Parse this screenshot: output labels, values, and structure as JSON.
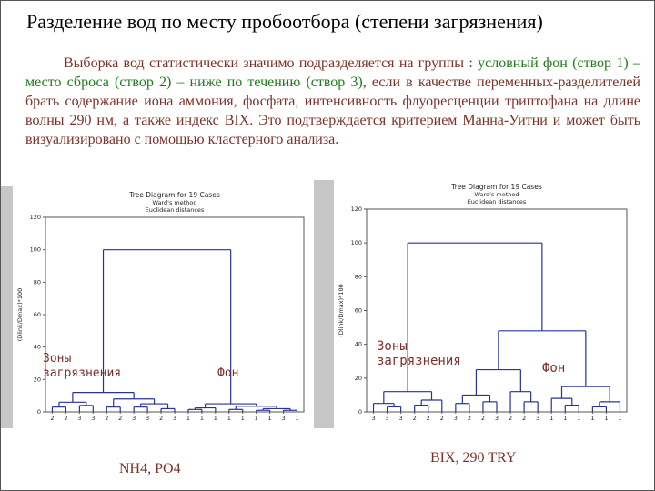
{
  "slide": {
    "title": "Разделение вод по месту пробоотбора (степени загрязнения)",
    "paragraph_parts": [
      {
        "text": "Выборка вод статистически значимо подразделяется на группы : ",
        "color": "maroon"
      },
      {
        "text": "условный фон (створ 1) – место сброса (створ 2) – ниже по течению (створ 3)",
        "color": "green"
      },
      {
        "text": ", если в качестве переменных-разделителей брать содержание иона аммония, фосфата, интенсивность флуоресценции триптофана на длине волны 290 нм, а также индекс BIX. Это подтверждается критерием Манна-Уитни и может быть визуализировано с помощью кластерного анализа.",
        "color": "maroon"
      }
    ],
    "colors": {
      "maroon": "#7b3028",
      "green": "#1f7a1f",
      "dendrogram_line": "#26339b"
    },
    "annotations": {
      "zones": "Зоны загрязнения",
      "fon": "Фон"
    }
  },
  "chart_data": [
    {
      "type": "dendrogram",
      "title_lines": [
        "Tree Diagram for 19 Cases",
        "Ward's method",
        "Euclidean distances"
      ],
      "ylabel": "(Dlink/Dmax)*100",
      "ylim": [
        0,
        120
      ],
      "yticks": [
        0,
        20,
        40,
        60,
        80,
        100,
        120
      ],
      "leaf_labels": [
        "2",
        "2",
        "3",
        "3",
        "2",
        "2",
        "3",
        "3",
        "2",
        "3",
        "1",
        "1",
        "1",
        "1",
        "1",
        "1",
        "1",
        "3",
        "1"
      ],
      "caption": "NH4, PO4",
      "line_color": "#26339b",
      "tree": {
        "h": 100,
        "children": [
          {
            "h": 12,
            "children": [
              {
                "h": 6,
                "children": [
                  {
                    "h": 3,
                    "children": [
                      {
                        "leaf": "2"
                      },
                      {
                        "leaf": "2"
                      }
                    ]
                  },
                  {
                    "h": 4,
                    "children": [
                      {
                        "leaf": "3"
                      },
                      {
                        "leaf": "3"
                      }
                    ]
                  }
                ]
              },
              {
                "h": 8,
                "children": [
                  {
                    "h": 3,
                    "children": [
                      {
                        "leaf": "2"
                      },
                      {
                        "leaf": "2"
                      }
                    ]
                  },
                  {
                    "h": 5,
                    "children": [
                      {
                        "h": 3,
                        "children": [
                          {
                            "leaf": "3"
                          },
                          {
                            "leaf": "3"
                          }
                        ]
                      },
                      {
                        "h": 2,
                        "children": [
                          {
                            "leaf": "2"
                          },
                          {
                            "leaf": "3"
                          }
                        ]
                      }
                    ]
                  }
                ]
              }
            ]
          },
          {
            "h": 5,
            "children": [
              {
                "h": 2.5,
                "children": [
                  {
                    "h": 1.5,
                    "children": [
                      {
                        "leaf": "1"
                      },
                      {
                        "leaf": "1"
                      }
                    ]
                  },
                  {
                    "leaf": "1"
                  }
                ]
              },
              {
                "h": 3.5,
                "children": [
                  {
                    "h": 1.5,
                    "children": [
                      {
                        "leaf": "1"
                      },
                      {
                        "leaf": "1"
                      }
                    ]
                  },
                  {
                    "h": 2,
                    "children": [
                      {
                        "h": 1,
                        "children": [
                          {
                            "leaf": "1"
                          },
                          {
                            "leaf": "1"
                          }
                        ]
                      },
                      {
                        "h": 1,
                        "children": [
                          {
                            "leaf": "3"
                          },
                          {
                            "leaf": "1"
                          }
                        ]
                      }
                    ]
                  }
                ]
              }
            ]
          }
        ]
      }
    },
    {
      "type": "dendrogram",
      "title_lines": [
        "Tree Diagram for 19 Cases",
        "Ward's method",
        "Euclidean distances"
      ],
      "ylabel": "(Dlink/Dmax)*100",
      "ylim": [
        0,
        120
      ],
      "yticks": [
        0,
        20,
        40,
        60,
        80,
        100,
        120
      ],
      "leaf_labels": [
        "3",
        "3",
        "3",
        "2",
        "2",
        "2",
        "3",
        "2",
        "2",
        "3",
        "2",
        "2",
        "3",
        "1",
        "1",
        "1",
        "1",
        "1",
        "1"
      ],
      "caption": "BIX, 290 TRY",
      "line_color": "#26339b",
      "tree": {
        "h": 100,
        "children": [
          {
            "h": 12,
            "children": [
              {
                "h": 5,
                "children": [
                  {
                    "leaf": "3"
                  },
                  {
                    "h": 3,
                    "children": [
                      {
                        "leaf": "3"
                      },
                      {
                        "leaf": "3"
                      }
                    ]
                  }
                ]
              },
              {
                "h": 7,
                "children": [
                  {
                    "h": 4,
                    "children": [
                      {
                        "leaf": "2"
                      },
                      {
                        "leaf": "2"
                      }
                    ]
                  },
                  {
                    "leaf": "2"
                  }
                ]
              }
            ]
          },
          {
            "h": 48,
            "children": [
              {
                "h": 25,
                "children": [
                  {
                    "h": 10,
                    "children": [
                      {
                        "h": 5,
                        "children": [
                          {
                            "leaf": "3"
                          },
                          {
                            "leaf": "2"
                          }
                        ]
                      },
                      {
                        "h": 6,
                        "children": [
                          {
                            "leaf": "2"
                          },
                          {
                            "leaf": "3"
                          }
                        ]
                      }
                    ]
                  },
                  {
                    "h": 12,
                    "children": [
                      {
                        "leaf": "2"
                      },
                      {
                        "h": 6,
                        "children": [
                          {
                            "leaf": "2"
                          },
                          {
                            "leaf": "3"
                          }
                        ]
                      }
                    ]
                  }
                ]
              },
              {
                "h": 15,
                "children": [
                  {
                    "h": 8,
                    "children": [
                      {
                        "leaf": "1"
                      },
                      {
                        "h": 4,
                        "children": [
                          {
                            "leaf": "1"
                          },
                          {
                            "leaf": "1"
                          }
                        ]
                      }
                    ]
                  },
                  {
                    "h": 6,
                    "children": [
                      {
                        "h": 3,
                        "children": [
                          {
                            "leaf": "1"
                          },
                          {
                            "leaf": "1"
                          }
                        ]
                      },
                      {
                        "leaf": "1"
                      }
                    ]
                  }
                ]
              }
            ]
          }
        ]
      }
    }
  ]
}
